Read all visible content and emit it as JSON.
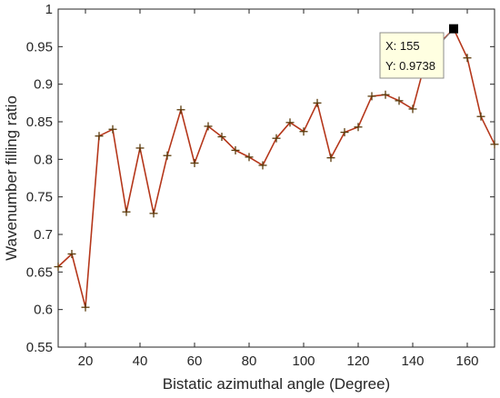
{
  "chart_data": {
    "type": "line",
    "xlabel": "Bistatic azimuthal angle (Degree)",
    "ylabel": "Wavenumber filling ratio",
    "xlim": [
      10,
      170
    ],
    "ylim": [
      0.55,
      1.0
    ],
    "x_ticks": [
      20,
      40,
      60,
      80,
      100,
      120,
      140,
      160
    ],
    "y_ticks": [
      0.55,
      0.6,
      0.65,
      0.7,
      0.75,
      0.8,
      0.85,
      0.9,
      0.95,
      1.0
    ],
    "grid": false,
    "series": [
      {
        "marker": "+",
        "line_color": "#b5371b",
        "marker_color": "#5a3a0a",
        "x": [
          10,
          15,
          20,
          25,
          30,
          35,
          40,
          45,
          50,
          55,
          60,
          65,
          70,
          75,
          80,
          85,
          90,
          95,
          100,
          105,
          110,
          115,
          120,
          125,
          130,
          135,
          140,
          145,
          150,
          155,
          160,
          165,
          170
        ],
        "values": [
          0.657,
          0.674,
          0.603,
          0.831,
          0.84,
          0.73,
          0.815,
          0.728,
          0.805,
          0.866,
          0.795,
          0.844,
          0.83,
          0.812,
          0.803,
          0.792,
          0.828,
          0.849,
          0.837,
          0.875,
          0.802,
          0.836,
          0.843,
          0.884,
          0.886,
          0.878,
          0.867,
          0.935,
          0.955,
          0.9738,
          0.935,
          0.857,
          0.82
        ]
      }
    ],
    "datatip": {
      "x": 155,
      "y": 0.9738,
      "x_text": "X: 155",
      "y_text": "Y: 0.9738"
    }
  }
}
